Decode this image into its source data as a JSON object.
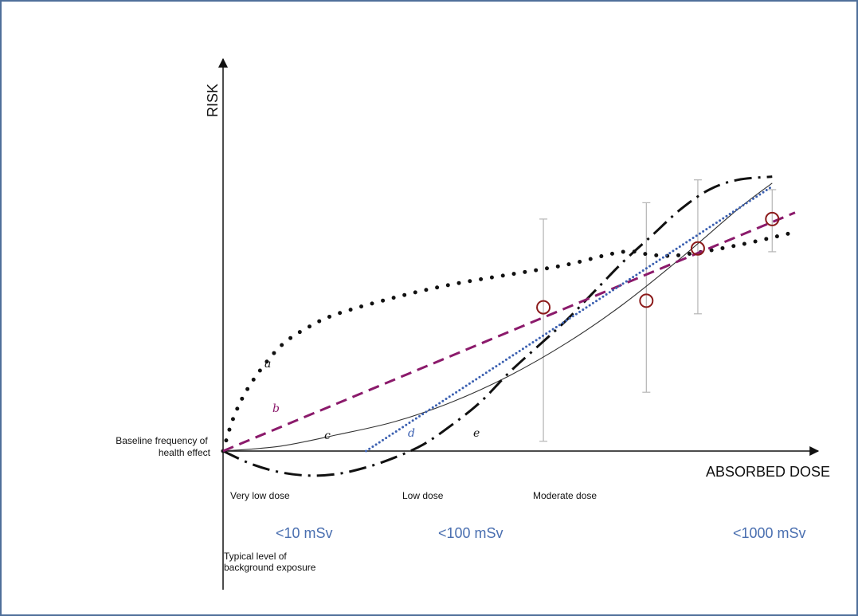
{
  "chart_data": {
    "type": "line",
    "title": "",
    "xlabel": "ABSORBED DOSE",
    "ylabel": "RISK",
    "baseline_label": [
      "Baseline frequency of",
      "health effect"
    ],
    "background_label": [
      "Typical level of",
      "background exposure"
    ],
    "dose_ranges": [
      "Very low dose",
      "Low dose",
      "Moderate dose"
    ],
    "dose_limits": [
      "<10 mSv",
      "<100 mSv",
      "<1000 mSv"
    ],
    "xlim": [
      0,
      1
    ],
    "ylim": [
      -0.1,
      1.2
    ],
    "grid": false,
    "legend": "none",
    "series": [
      {
        "label": "a",
        "color": "#111111",
        "style": "dotted-heavy",
        "x": [
          0,
          0.02,
          0.05,
          0.1,
          0.15,
          0.2,
          0.3,
          0.4,
          0.5,
          0.6,
          0.7,
          0.75,
          0.8,
          0.9,
          1.0
        ],
        "y": [
          0,
          0.11,
          0.21,
          0.32,
          0.38,
          0.42,
          0.47,
          0.51,
          0.54,
          0.57,
          0.61,
          0.6,
          0.6,
          0.63,
          0.67
        ]
      },
      {
        "label": "b",
        "color": "#8b1a6b",
        "style": "dashed",
        "x": [
          0,
          1.0
        ],
        "y": [
          0,
          0.73
        ]
      },
      {
        "label": "c",
        "color": "#333333",
        "style": "solid-thin",
        "x": [
          0,
          0.1,
          0.2,
          0.3,
          0.4,
          0.5,
          0.6,
          0.7,
          0.8,
          0.9,
          0.96
        ],
        "y": [
          0,
          0.015,
          0.05,
          0.09,
          0.15,
          0.23,
          0.33,
          0.45,
          0.59,
          0.74,
          0.82
        ]
      },
      {
        "label": "d",
        "color": "#3a5fb0",
        "style": "dotted",
        "x": [
          0.25,
          0.96
        ],
        "y": [
          0,
          0.81
        ]
      },
      {
        "label": "e",
        "color": "#111111",
        "style": "dash-dot",
        "x": [
          0,
          0.05,
          0.1,
          0.15,
          0.2,
          0.25,
          0.3,
          0.35,
          0.4,
          0.45,
          0.5,
          0.55,
          0.6,
          0.65,
          0.7,
          0.75,
          0.8,
          0.85,
          0.9,
          0.96
        ],
        "y": [
          0,
          -0.04,
          -0.065,
          -0.075,
          -0.07,
          -0.05,
          -0.02,
          0.02,
          0.08,
          0.15,
          0.24,
          0.32,
          0.4,
          0.49,
          0.58,
          0.66,
          0.74,
          0.8,
          0.83,
          0.84
        ]
      }
    ],
    "observations": [
      {
        "x": 0.56,
        "y": 0.44,
        "err_low": 0.03,
        "err_high": 0.71
      },
      {
        "x": 0.74,
        "y": 0.46,
        "err_low": 0.18,
        "err_high": 0.76
      },
      {
        "x": 0.83,
        "y": 0.62,
        "err_low": 0.42,
        "err_high": 0.83
      },
      {
        "x": 0.96,
        "y": 0.71,
        "err_low": 0.61,
        "err_high": 0.8
      }
    ]
  }
}
